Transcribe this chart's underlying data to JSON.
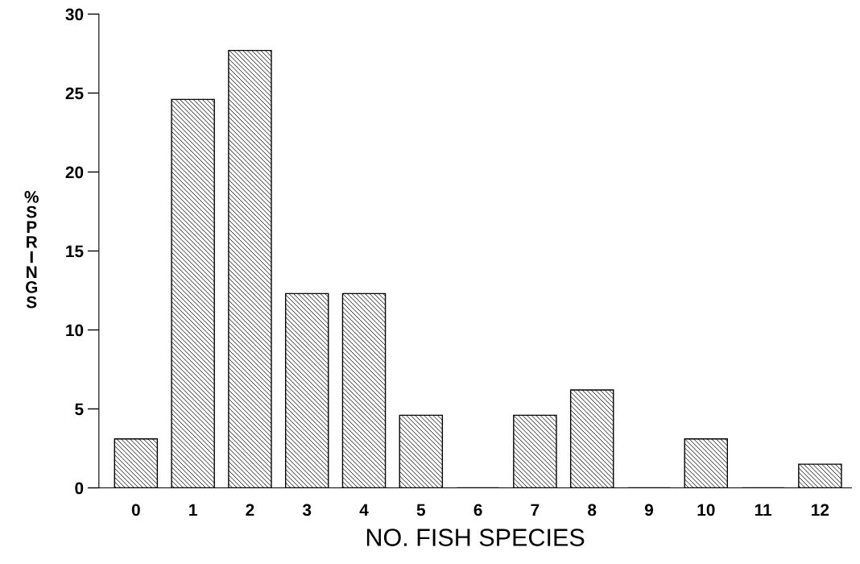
{
  "chart_data": {
    "type": "bar",
    "xlabel": "NO. FISH SPECIES",
    "ylabel": "% SPRINGS",
    "categories": [
      "0",
      "1",
      "2",
      "3",
      "4",
      "5",
      "6",
      "7",
      "8",
      "9",
      "10",
      "11",
      "12"
    ],
    "values": [
      3.1,
      24.6,
      27.7,
      12.3,
      12.3,
      4.6,
      0,
      4.6,
      6.2,
      0,
      3.1,
      0,
      1.5
    ],
    "color": "#000000",
    "ylim": [
      0,
      30
    ],
    "yticks": [
      0,
      5,
      10,
      15,
      20,
      25,
      30
    ],
    "grid": false,
    "legend": false
  }
}
